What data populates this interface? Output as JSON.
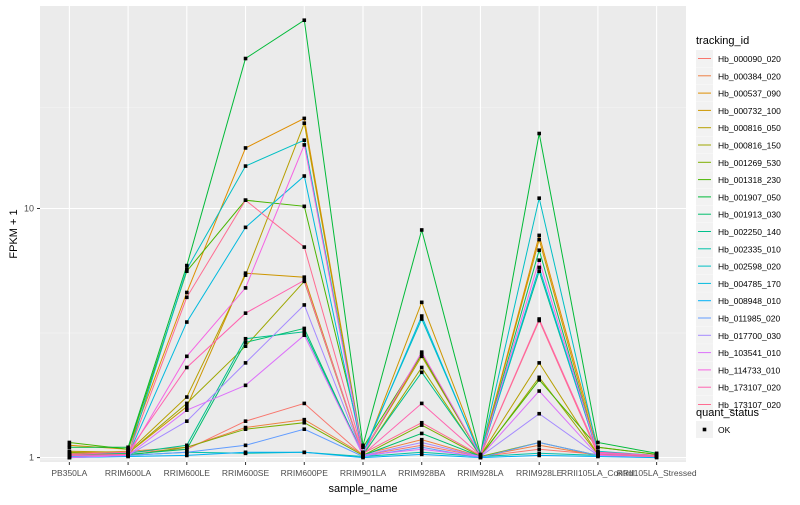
{
  "chart_data": {
    "type": "line",
    "title": "",
    "xlabel": "sample_name",
    "ylabel": "FPKM + 1",
    "y_scale": "log10",
    "y_ticks": [
      1,
      10
    ],
    "y_tick_labels": [
      "1",
      "10"
    ],
    "ylim": [
      0.96,
      65
    ],
    "grid": true,
    "background": "#ebebeb",
    "legend_position": "right",
    "categories": [
      "PB350LA",
      "RRIM600LA",
      "RRIM600LE",
      "RRIM600SE",
      "RRIM600PE",
      "RRIM901LA",
      "RRIM928BA",
      "RRIM928LA",
      "RRIM928LE",
      "RRII105LA_Control",
      "RRII105LA_Stressed"
    ],
    "legend_title": "tracking_id",
    "series": [
      {
        "name": "Hb_000090_020",
        "color": "#F8766D",
        "values": [
          1.05,
          1.05,
          1.08,
          1.4,
          1.65,
          1.02,
          1.12,
          1.01,
          1.08,
          1.03,
          1.02
        ]
      },
      {
        "name": "Hb_000384_020",
        "color": "#EE8043",
        "values": [
          1.04,
          1.06,
          1.1,
          1.32,
          1.42,
          1.03,
          1.18,
          1.01,
          1.12,
          1.02,
          1.01
        ]
      },
      {
        "name": "Hb_000537_090",
        "color": "#DF8E00",
        "values": [
          1.12,
          1.08,
          4.6,
          17.5,
          23.0,
          1.05,
          2.6,
          1.02,
          7.8,
          1.1,
          1.03
        ]
      },
      {
        "name": "Hb_000732_100",
        "color": "#CD9600",
        "values": [
          1.03,
          1.04,
          1.6,
          5.5,
          5.3,
          1.02,
          4.2,
          1.02,
          7.5,
          1.05,
          1.02
        ]
      },
      {
        "name": "Hb_000816_050",
        "color": "#B79F00",
        "values": [
          1.06,
          1.05,
          1.75,
          5.4,
          22.0,
          1.04,
          2.55,
          1.02,
          2.4,
          1.03,
          1.01
        ]
      },
      {
        "name": "Hb_000816_150",
        "color": "#9DA700",
        "values": [
          1.02,
          1.04,
          1.65,
          2.8,
          5.1,
          1.02,
          2.3,
          1.01,
          2.1,
          1.03,
          1.01
        ]
      },
      {
        "name": "Hb_001269_530",
        "color": "#7CAE00",
        "values": [
          1.05,
          1.02,
          1.1,
          1.3,
          1.38,
          1.02,
          1.35,
          1.01,
          1.15,
          1.02,
          1.01
        ]
      },
      {
        "name": "Hb_001318_230",
        "color": "#49B500",
        "values": [
          1.15,
          1.08,
          5.6,
          10.8,
          10.2,
          1.1,
          2.6,
          1.02,
          2.05,
          1.1,
          1.03
        ]
      },
      {
        "name": "Hb_001907_050",
        "color": "#00BA38",
        "values": [
          1.1,
          1.1,
          5.9,
          40.0,
          57.0,
          1.12,
          8.2,
          1.03,
          20.0,
          1.15,
          1.04
        ]
      },
      {
        "name": "Hb_001913_030",
        "color": "#00BE6C",
        "values": [
          1.02,
          1.03,
          1.08,
          2.9,
          3.3,
          1.02,
          1.25,
          1.01,
          6.8,
          1.03,
          1.01
        ]
      },
      {
        "name": "Hb_002250_140",
        "color": "#00C08B",
        "values": [
          1.03,
          1.04,
          1.12,
          3.0,
          3.2,
          1.03,
          2.2,
          1.02,
          5.6,
          1.04,
          1.02
        ]
      },
      {
        "name": "Hb_002335_010",
        "color": "#00C1A7",
        "values": [
          1.01,
          1.02,
          1.05,
          1.04,
          1.05,
          1.01,
          1.05,
          1.01,
          1.04,
          1.02,
          1.01
        ]
      },
      {
        "name": "Hb_002598_020",
        "color": "#00BFC4",
        "values": [
          1.02,
          1.02,
          5.7,
          14.8,
          18.8,
          1.05,
          3.6,
          1.02,
          11.0,
          1.06,
          1.02
        ]
      },
      {
        "name": "Hb_004785_170",
        "color": "#00BADE",
        "values": [
          1.01,
          1.02,
          3.5,
          8.4,
          13.5,
          1.03,
          3.7,
          1.01,
          5.8,
          1.03,
          1.01
        ]
      },
      {
        "name": "Hb_008948_010",
        "color": "#00B0F6",
        "values": [
          1.0,
          1.01,
          1.02,
          1.05,
          1.05,
          1.0,
          1.03,
          1.0,
          1.02,
          1.01,
          1.0
        ]
      },
      {
        "name": "Hb_011985_020",
        "color": "#619CFF",
        "values": [
          1.01,
          1.02,
          1.05,
          1.12,
          1.3,
          1.01,
          1.1,
          1.0,
          1.15,
          1.02,
          1.01
        ]
      },
      {
        "name": "Hb_017700_030",
        "color": "#A58AFF",
        "values": [
          1.0,
          1.02,
          1.4,
          2.4,
          4.1,
          1.02,
          1.15,
          1.01,
          1.5,
          1.02,
          1.01
        ]
      },
      {
        "name": "Hb_103541_010",
        "color": "#DC71FA",
        "values": [
          1.0,
          1.02,
          1.55,
          1.95,
          3.1,
          1.02,
          1.08,
          1.01,
          1.85,
          1.02,
          1.01
        ]
      },
      {
        "name": "Hb_114733_010",
        "color": "#F564E3",
        "values": [
          1.02,
          1.02,
          2.55,
          4.8,
          18.0,
          1.04,
          2.65,
          1.02,
          6.2,
          1.04,
          1.02
        ]
      },
      {
        "name": "Hb_173107_020",
        "color": "#FF64B0",
        "values": [
          1.03,
          1.05,
          2.3,
          3.8,
          5.15,
          1.03,
          1.65,
          1.02,
          3.6,
          1.05,
          1.02
        ]
      },
      {
        "name": "Hb_173107_020",
        "color": "#FF6C91",
        "values": [
          1.02,
          1.03,
          4.4,
          10.8,
          7.0,
          1.04,
          1.38,
          1.02,
          3.55,
          1.03,
          1.01
        ]
      }
    ],
    "shape_legend": {
      "title": "quant_status",
      "entries": [
        {
          "label": "OK",
          "shape": "square"
        }
      ]
    }
  }
}
